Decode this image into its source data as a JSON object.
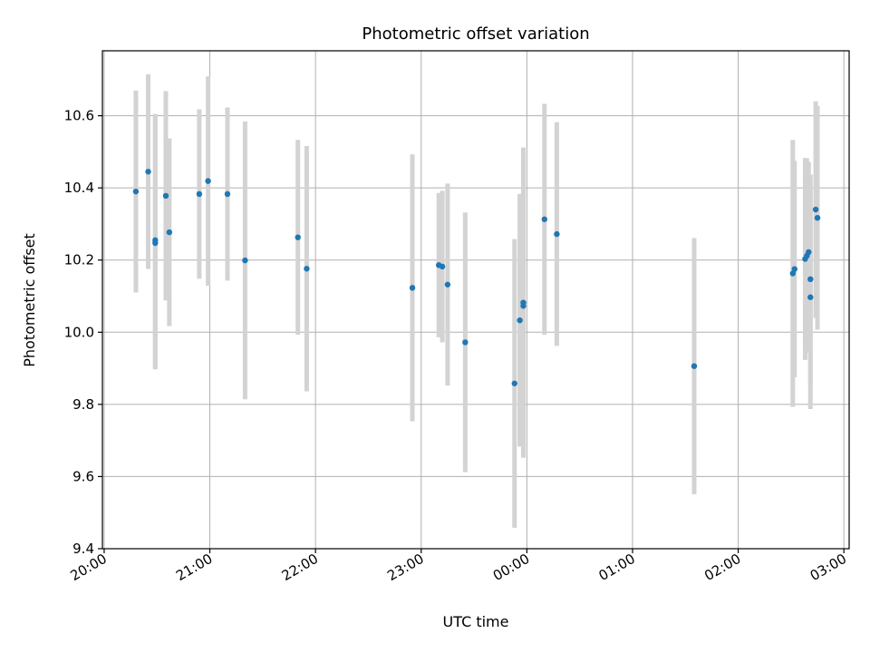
{
  "chart_data": {
    "type": "scatter",
    "title": "Photometric offset variation",
    "xlabel": "UTC time",
    "ylabel": "Photometric offset",
    "x_unit": "UTC time (HH:MM), night spanning two dates",
    "xlim": [
      "19:59",
      "03:03"
    ],
    "ylim": [
      9.4,
      10.78
    ],
    "xticks": [
      {
        "label": "20:00",
        "time": "20:00"
      },
      {
        "label": "21:00",
        "time": "21:00"
      },
      {
        "label": "22:00",
        "time": "22:00"
      },
      {
        "label": "23:00",
        "time": "23:00"
      },
      {
        "label": "00:00",
        "time": "00:00"
      },
      {
        "label": "01:00",
        "time": "01:00"
      },
      {
        "label": "02:00",
        "time": "02:00"
      },
      {
        "label": "03:00",
        "time": "03:00"
      }
    ],
    "yticks": [
      9.4,
      9.6,
      9.8,
      10.0,
      10.2,
      10.4,
      10.6
    ],
    "ytick_labels": [
      "9.4",
      "9.6",
      "9.8",
      "10.0",
      "10.2",
      "10.4",
      "10.6"
    ],
    "grid": true,
    "colors": {
      "points": "#1f77b4",
      "errorbars": "#d3d3d3",
      "grid": "#b0b0b0"
    },
    "points": [
      {
        "t": "20:18",
        "y": 10.39,
        "err": 0.28
      },
      {
        "t": "20:25",
        "y": 10.445,
        "err": 0.27
      },
      {
        "t": "20:29",
        "y": 10.255,
        "err": 0.35
      },
      {
        "t": "20:29",
        "y": 10.247,
        "err": 0.35
      },
      {
        "t": "20:35",
        "y": 10.378,
        "err": 0.29
      },
      {
        "t": "20:37",
        "y": 10.277,
        "err": 0.26
      },
      {
        "t": "20:54",
        "y": 10.383,
        "err": 0.235
      },
      {
        "t": "20:59",
        "y": 10.419,
        "err": 0.29
      },
      {
        "t": "21:10",
        "y": 10.383,
        "err": 0.24
      },
      {
        "t": "21:20",
        "y": 10.199,
        "err": 0.385
      },
      {
        "t": "21:50",
        "y": 10.263,
        "err": 0.27
      },
      {
        "t": "21:55",
        "y": 10.176,
        "err": 0.34
      },
      {
        "t": "22:55",
        "y": 10.123,
        "err": 0.37
      },
      {
        "t": "23:10",
        "y": 10.186,
        "err": 0.2
      },
      {
        "t": "23:12",
        "y": 10.182,
        "err": 0.21
      },
      {
        "t": "23:15",
        "y": 10.132,
        "err": 0.28
      },
      {
        "t": "23:25",
        "y": 9.972,
        "err": 0.36
      },
      {
        "t": "23:53",
        "y": 9.858,
        "err": 0.4
      },
      {
        "t": "23:56",
        "y": 10.033,
        "err": 0.35
      },
      {
        "t": "23:58",
        "y": 10.073,
        "err": 0.42
      },
      {
        "t": "23:58",
        "y": 10.082,
        "err": 0.43
      },
      {
        "t": "00:10",
        "y": 10.313,
        "err": 0.32
      },
      {
        "t": "00:17",
        "y": 10.272,
        "err": 0.31
      },
      {
        "t": "01:35",
        "y": 9.906,
        "err": 0.355
      },
      {
        "t": "02:31",
        "y": 10.163,
        "err": 0.37
      },
      {
        "t": "02:32",
        "y": 10.175,
        "err": 0.3
      },
      {
        "t": "02:38",
        "y": 10.203,
        "err": 0.28
      },
      {
        "t": "02:39",
        "y": 10.212,
        "err": 0.27
      },
      {
        "t": "02:40",
        "y": 10.222,
        "err": 0.25
      },
      {
        "t": "02:41",
        "y": 10.147,
        "err": 0.29
      },
      {
        "t": "02:41",
        "y": 10.097,
        "err": 0.31
      },
      {
        "t": "02:44",
        "y": 10.34,
        "err": 0.3
      },
      {
        "t": "02:45",
        "y": 10.317,
        "err": 0.31
      }
    ]
  }
}
